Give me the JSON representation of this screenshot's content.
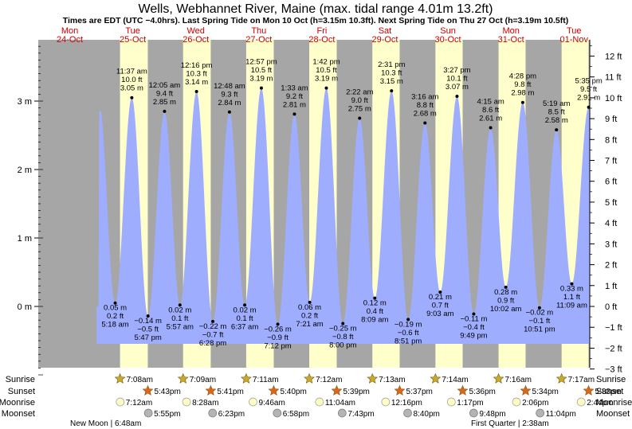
{
  "chart_data": {
    "type": "area",
    "title": "Wells, Webhannet River, Maine (max. tidal range 4.01m 13.2ft)",
    "subtitle": "Times are EDT (UTC −4.0hrs). Last Spring Tide on Mon 10 Oct (h=3.15m 10.3ft). Next Spring Tide on Thu 27 Oct (h=3.19m 10.5ft)",
    "x_unit": "hours since Mon 24-Oct 00:00 (EDT)",
    "xlim": [
      0,
      210
    ],
    "ylim_m": [
      -0.95,
      3.85
    ],
    "left_axis": {
      "unit": "m",
      "ticks": [
        {
          "value": 0,
          "label": "0 m"
        },
        {
          "value": 1,
          "label": "1 m"
        },
        {
          "value": 2,
          "label": "2 m"
        },
        {
          "value": 3,
          "label": "3 m"
        }
      ]
    },
    "right_axis": {
      "unit": "ft",
      "ticks": [
        {
          "value": -3,
          "label": "−3 ft"
        },
        {
          "value": -2,
          "label": "−2 ft"
        },
        {
          "value": -1,
          "label": "−1 ft"
        },
        {
          "value": 0,
          "label": "0 ft"
        },
        {
          "value": 1,
          "label": "1 ft"
        },
        {
          "value": 2,
          "label": "2 ft"
        },
        {
          "value": 3,
          "label": "3 ft"
        },
        {
          "value": 4,
          "label": "4 ft"
        },
        {
          "value": 5,
          "label": "5 ft"
        },
        {
          "value": 6,
          "label": "6 ft"
        },
        {
          "value": 7,
          "label": "7 ft"
        },
        {
          "value": 8,
          "label": "8 ft"
        },
        {
          "value": 9,
          "label": "9 ft"
        },
        {
          "value": 10,
          "label": "10 ft"
        },
        {
          "value": 11,
          "label": "11 ft"
        },
        {
          "value": 12,
          "label": "12 ft"
        }
      ]
    },
    "days": [
      {
        "dow": "Mon",
        "date": "24-Oct"
      },
      {
        "dow": "Tue",
        "date": "25-Oct"
      },
      {
        "dow": "Wed",
        "date": "26-Oct"
      },
      {
        "dow": "Thu",
        "date": "27-Oct"
      },
      {
        "dow": "Fri",
        "date": "28-Oct"
      },
      {
        "dow": "Sat",
        "date": "29-Oct"
      },
      {
        "dow": "Sun",
        "date": "30-Oct"
      },
      {
        "dow": "Mon",
        "date": "31-Oct"
      },
      {
        "dow": "Tue",
        "date": "01-Nov"
      }
    ],
    "tides": [
      {
        "t": 29.3,
        "h": 0.05,
        "time": "5:18 am",
        "ft": "0.2 ft",
        "m": "0.05 m",
        "type": "low"
      },
      {
        "t": 35.62,
        "h": 3.05,
        "time": "11:37 am",
        "ft": "10.0 ft",
        "m": "3.05 m",
        "type": "high"
      },
      {
        "t": 41.78,
        "h": -0.14,
        "time": "5:47 pm",
        "ft": "−0.5 ft",
        "m": "−0.14 m",
        "type": "low"
      },
      {
        "t": 48.08,
        "h": 2.85,
        "time": "12:05 am",
        "ft": "9.4 ft",
        "m": "2.85 m",
        "type": "high"
      },
      {
        "t": 53.95,
        "h": 0.02,
        "time": "5:57 am",
        "ft": "0.1 ft",
        "m": "0.02 m",
        "type": "low"
      },
      {
        "t": 60.27,
        "h": 3.14,
        "time": "12:16 pm",
        "ft": "10.3 ft",
        "m": "3.14 m",
        "type": "high"
      },
      {
        "t": 66.47,
        "h": -0.22,
        "time": "6:28 pm",
        "ft": "−0.7 ft",
        "m": "−0.22 m",
        "type": "low"
      },
      {
        "t": 72.8,
        "h": 2.84,
        "time": "12:48 am",
        "ft": "9.3 ft",
        "m": "2.84 m",
        "type": "high"
      },
      {
        "t": 78.62,
        "h": 0.02,
        "time": "6:37 am",
        "ft": "0.1 ft",
        "m": "0.02 m",
        "type": "low"
      },
      {
        "t": 84.95,
        "h": 3.19,
        "time": "12:57 pm",
        "ft": "10.5 ft",
        "m": "3.19 m",
        "type": "high"
      },
      {
        "t": 91.2,
        "h": -0.26,
        "time": "7:12 pm",
        "ft": "−0.9 ft",
        "m": "−0.26 m",
        "type": "low"
      },
      {
        "t": 97.55,
        "h": 2.81,
        "time": "1:33 am",
        "ft": "9.2 ft",
        "m": "2.81 m",
        "type": "high"
      },
      {
        "t": 103.35,
        "h": 0.06,
        "time": "7:21 am",
        "ft": "0.2 ft",
        "m": "0.06 m",
        "type": "low"
      },
      {
        "t": 109.7,
        "h": 3.19,
        "time": "1:42 pm",
        "ft": "10.5 ft",
        "m": "3.19 m",
        "type": "high"
      },
      {
        "t": 116.0,
        "h": -0.25,
        "time": "8:00 pm",
        "ft": "−0.8 ft",
        "m": "−0.25 m",
        "type": "low"
      },
      {
        "t": 122.37,
        "h": 2.75,
        "time": "2:22 am",
        "ft": "9.0 ft",
        "m": "2.75 m",
        "type": "high"
      },
      {
        "t": 128.15,
        "h": 0.12,
        "time": "8:09 am",
        "ft": "0.4 ft",
        "m": "0.12 m",
        "type": "low"
      },
      {
        "t": 134.52,
        "h": 3.15,
        "time": "2:31 pm",
        "ft": "10.3 ft",
        "m": "3.15 m",
        "type": "high"
      },
      {
        "t": 140.85,
        "h": -0.19,
        "time": "8:51 pm",
        "ft": "−0.6 ft",
        "m": "−0.19 m",
        "type": "low"
      },
      {
        "t": 147.27,
        "h": 2.68,
        "time": "3:16 am",
        "ft": "8.8 ft",
        "m": "2.68 m",
        "type": "high"
      },
      {
        "t": 153.05,
        "h": 0.21,
        "time": "9:03 am",
        "ft": "0.7 ft",
        "m": "0.21 m",
        "type": "low"
      },
      {
        "t": 159.45,
        "h": 3.07,
        "time": "3:27 pm",
        "ft": "10.1 ft",
        "m": "3.07 m",
        "type": "high"
      },
      {
        "t": 165.82,
        "h": -0.11,
        "time": "9:49 pm",
        "ft": "−0.4 ft",
        "m": "−0.11 m",
        "type": "low"
      },
      {
        "t": 172.25,
        "h": 2.61,
        "time": "4:15 am",
        "ft": "8.6 ft",
        "m": "2.61 m",
        "type": "high"
      },
      {
        "t": 178.03,
        "h": 0.28,
        "time": "10:02 am",
        "ft": "0.9 ft",
        "m": "0.28 m",
        "type": "low"
      },
      {
        "t": 184.47,
        "h": 2.98,
        "time": "4:28 pm",
        "ft": "9.8 ft",
        "m": "2.98 m",
        "type": "high"
      },
      {
        "t": 190.85,
        "h": -0.02,
        "time": "10:51 pm",
        "ft": "−0.1 ft",
        "m": "−0.02 m",
        "type": "low"
      },
      {
        "t": 197.32,
        "h": 2.58,
        "time": "5:19 am",
        "ft": "8.5 ft",
        "m": "2.58 m",
        "type": "high"
      },
      {
        "t": 203.15,
        "h": 0.33,
        "time": "11:09 am",
        "ft": "1.1 ft",
        "m": "0.33 m",
        "type": "low"
      },
      {
        "t": 209.58,
        "h": 2.91,
        "time": "5:35 pm",
        "ft": "9.5 ft",
        "m": "2.91 m",
        "type": "high"
      }
    ],
    "sun": [
      {
        "day": 1,
        "rise_h": 7.13,
        "set_h": 17.72,
        "rise": "7:08am",
        "set": "5:43pm"
      },
      {
        "day": 2,
        "rise_h": 7.15,
        "set_h": 17.68,
        "rise": "7:09am",
        "set": "5:41pm"
      },
      {
        "day": 3,
        "rise_h": 7.18,
        "set_h": 17.67,
        "rise": "7:11am",
        "set": "5:40pm"
      },
      {
        "day": 4,
        "rise_h": 7.2,
        "set_h": 17.65,
        "rise": "7:12am",
        "set": "5:39pm"
      },
      {
        "day": 5,
        "rise_h": 7.22,
        "set_h": 17.62,
        "rise": "7:13am",
        "set": "5:37pm"
      },
      {
        "day": 6,
        "rise_h": 7.23,
        "set_h": 17.6,
        "rise": "7:14am",
        "set": "5:36pm"
      },
      {
        "day": 7,
        "rise_h": 7.27,
        "set_h": 17.57,
        "rise": "7:16am",
        "set": "5:34pm"
      },
      {
        "day": 8,
        "rise_h": 7.28,
        "set_h": 17.55,
        "rise": "7:17am",
        "set": "5:33pm"
      }
    ],
    "moonrise": [
      {
        "t": 31.2,
        "label": "7:12am"
      },
      {
        "t": 56.47,
        "label": "8:28am"
      },
      {
        "t": 81.77,
        "label": "9:46am"
      },
      {
        "t": 107.07,
        "label": "11:04am"
      },
      {
        "t": 132.27,
        "label": "12:16pm"
      },
      {
        "t": 157.28,
        "label": "1:17pm"
      },
      {
        "t": 182.1,
        "label": "2:06pm"
      },
      {
        "t": 206.73,
        "label": "2:44pm"
      }
    ],
    "moonset": [
      {
        "t": 41.92,
        "label": "5:55pm"
      },
      {
        "t": 66.38,
        "label": "6:23pm"
      },
      {
        "t": 90.97,
        "label": "6:58pm"
      },
      {
        "t": 115.72,
        "label": "7:43pm"
      },
      {
        "t": 140.67,
        "label": "8:40pm"
      },
      {
        "t": 165.8,
        "label": "9:48pm"
      },
      {
        "t": 191.07,
        "label": "11:04pm"
      }
    ],
    "moon_phases": [
      {
        "label": "New Moon",
        "time": "6:48am"
      },
      {
        "label": "First Quarter",
        "time": "2:38am"
      }
    ],
    "row_labels": {
      "sunrise": "Sunrise",
      "sunset": "Sunset",
      "moonrise": "Moonrise",
      "moonset": "Moonset"
    },
    "colors": {
      "night": "#a6a6a6",
      "day": "#ffffcc",
      "water": "#9fadff",
      "day_label": "#cc0000",
      "sunrise_star": "#c8aa2a",
      "sunset_star": "#e06418",
      "moonrise_disc": "#fdfdc4",
      "moonset_disc": "#b4b4b4"
    }
  }
}
